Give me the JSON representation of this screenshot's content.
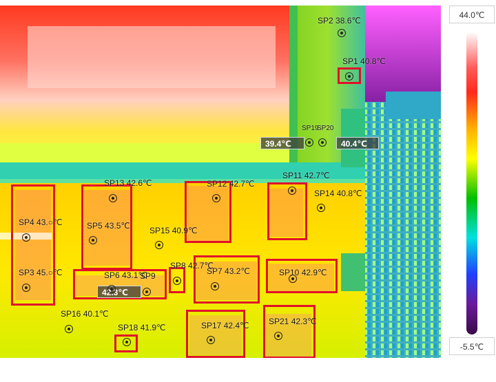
{
  "scale": {
    "max_label": "44.0℃",
    "min_label": "-5.5℃",
    "palette": [
      "#ffffff",
      "#ff5a5a",
      "#ff2a1a",
      "#ffb000",
      "#ffff00",
      "#00c000",
      "#00e0e0",
      "#2040ff",
      "#6a1a9a",
      "#3a0a4a"
    ]
  },
  "readouts": {
    "left": "39.4℃",
    "right": "40.4℃",
    "sp6_box": "42.3℃"
  },
  "spots": [
    {
      "id": "sp1",
      "label": "SP1 40.8℃"
    },
    {
      "id": "sp2",
      "label": "SP2 38.6℃"
    },
    {
      "id": "sp3",
      "label": "SP3 45.○℃"
    },
    {
      "id": "sp4",
      "label": "SP4 43.○℃"
    },
    {
      "id": "sp5",
      "label": "SP5 43.5℃"
    },
    {
      "id": "sp6",
      "label": "SP6 43.1℃"
    },
    {
      "id": "sp7",
      "label": "SP7 43.2℃"
    },
    {
      "id": "sp8",
      "label": "SP8 42.7℃"
    },
    {
      "id": "sp9",
      "label": "SP9"
    },
    {
      "id": "sp10",
      "label": "SP10 42.9℃"
    },
    {
      "id": "sp11",
      "label": "SP11 42.7℃"
    },
    {
      "id": "sp12",
      "label": "SP12 42.7℃"
    },
    {
      "id": "sp13",
      "label": "SP13 42.6℃"
    },
    {
      "id": "sp14",
      "label": "SP14 40.8℃"
    },
    {
      "id": "sp15",
      "label": "SP15 40.9℃"
    },
    {
      "id": "sp16",
      "label": "SP16 40.1℃"
    },
    {
      "id": "sp17",
      "label": "SP17 42.4℃"
    },
    {
      "id": "sp18",
      "label": "SP18 41.9℃"
    },
    {
      "id": "sp19",
      "label": "SP19"
    },
    {
      "id": "sp20",
      "label": "SP20"
    },
    {
      "id": "sp21",
      "label": "SP21 42.3℃"
    }
  ]
}
